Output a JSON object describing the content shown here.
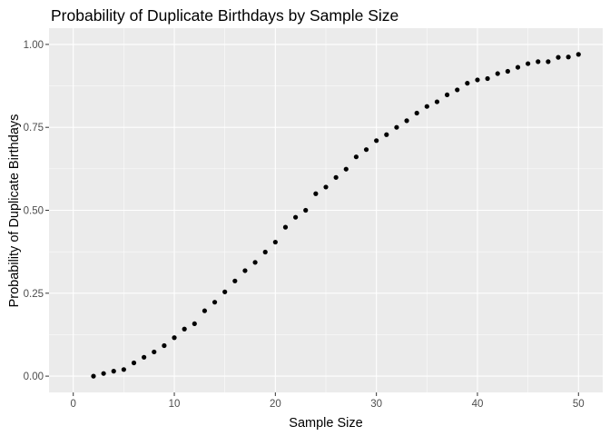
{
  "chart_data": {
    "type": "scatter",
    "title": "Probability of Duplicate Birthdays by Sample Size",
    "xlabel": "Sample Size",
    "ylabel": "Probability of Duplicate Birthdays",
    "xlim": [
      0,
      50
    ],
    "ylim": [
      0,
      1
    ],
    "x_ticks": [
      0,
      10,
      20,
      30,
      40,
      50
    ],
    "x_tick_labels": [
      "0",
      "10",
      "20",
      "30",
      "40",
      "50"
    ],
    "y_ticks": [
      0,
      0.25,
      0.5,
      0.75,
      1
    ],
    "y_tick_labels": [
      "0.00",
      "0.25",
      "0.50",
      "0.75",
      "1.00"
    ],
    "grid": true,
    "legend": "none",
    "colors": {
      "panel_background": "#ebebeb",
      "grid": "#ffffff",
      "points": "#000000",
      "tick_text": "#4d4d4d"
    },
    "x": [
      2,
      3,
      4,
      5,
      6,
      7,
      8,
      9,
      10,
      11,
      12,
      13,
      14,
      15,
      16,
      17,
      18,
      19,
      20,
      21,
      22,
      23,
      24,
      25,
      26,
      27,
      28,
      29,
      30,
      31,
      32,
      33,
      34,
      35,
      36,
      37,
      38,
      39,
      40,
      41,
      42,
      43,
      44,
      45,
      46,
      47,
      48,
      49,
      50
    ],
    "y": [
      0.0,
      0.008,
      0.015,
      0.02,
      0.04,
      0.057,
      0.073,
      0.092,
      0.116,
      0.142,
      0.158,
      0.197,
      0.223,
      0.254,
      0.287,
      0.318,
      0.343,
      0.374,
      0.404,
      0.449,
      0.479,
      0.5,
      0.55,
      0.57,
      0.599,
      0.624,
      0.661,
      0.683,
      0.71,
      0.728,
      0.75,
      0.77,
      0.793,
      0.813,
      0.827,
      0.848,
      0.863,
      0.883,
      0.893,
      0.897,
      0.912,
      0.919,
      0.931,
      0.942,
      0.948,
      0.948,
      0.961,
      0.962,
      0.97
    ]
  }
}
